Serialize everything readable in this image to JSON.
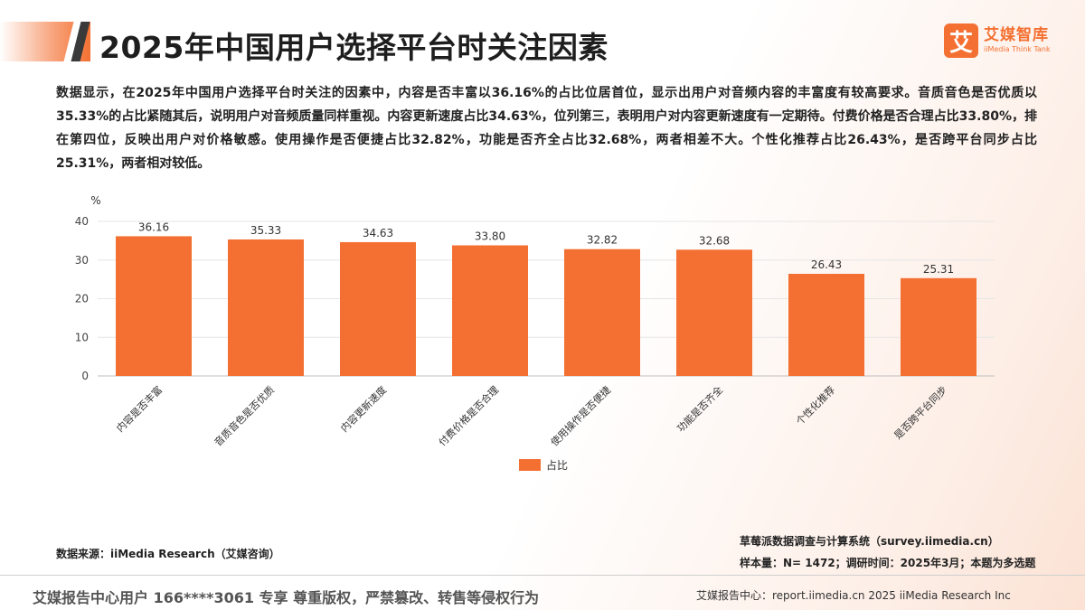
{
  "header": {
    "title": "2025年中国用户选择平台时关注因素"
  },
  "logo": {
    "mark": "艾",
    "name": "艾媒智库",
    "subtitle": "iiMedia Think Tank"
  },
  "description": "数据显示，在2025年中国用户选择平台时关注的因素中，内容是否丰富以36.16%的占比位居首位，显示出用户对音频内容的丰富度有较高要求。音质音色是否优质以35.33%的占比紧随其后，说明用户对音频质量同样重视。内容更新速度占比34.63%，位列第三，表明用户对内容更新速度有一定期待。付费价格是否合理占比33.80%，排在第四位，反映出用户对价格敏感。使用操作是否便捷占比32.82%，功能是否齐全占比32.68%，两者相差不大。个性化推荐占比26.43%，是否跨平台同步占比25.31%，两者相对较低。",
  "chart_data": {
    "type": "bar",
    "categories": [
      "内容是否丰富",
      "音质音色是否优质",
      "内容更新速度",
      "付费价格是否合理",
      "使用操作是否便捷",
      "功能是否齐全",
      "个性化推荐",
      "是否跨平台同步"
    ],
    "series": [
      {
        "name": "占比",
        "values": [
          36.16,
          35.33,
          34.63,
          33.8,
          32.82,
          32.68,
          26.43,
          25.31
        ]
      }
    ],
    "value_labels": [
      "36.16",
      "35.33",
      "34.63",
      "33.80",
      "32.82",
      "32.68",
      "26.43",
      "25.31"
    ],
    "ylabel": "%",
    "ylim": [
      0,
      40
    ],
    "yticks": [
      "0",
      "10",
      "20",
      "30",
      "40"
    ],
    "grid": true,
    "legend_position": "bottom",
    "bar_color": "#f47032"
  },
  "footer": {
    "source": "数据来源：iiMedia Research（艾媒咨询）",
    "survey_system": "草莓派数据调查与计算系统（survey.iimedia.cn）",
    "sample_note": "样本量：N= 1472；调研时间：2025年3月；本题为多选题",
    "copyright_notice": "艾媒报告中心用户 166****3061 专享 尊重版权，严禁篡改、转售等侵权行为",
    "site": "艾媒报告中心：report.iimedia.cn   2025 iiMedia Research Inc"
  }
}
